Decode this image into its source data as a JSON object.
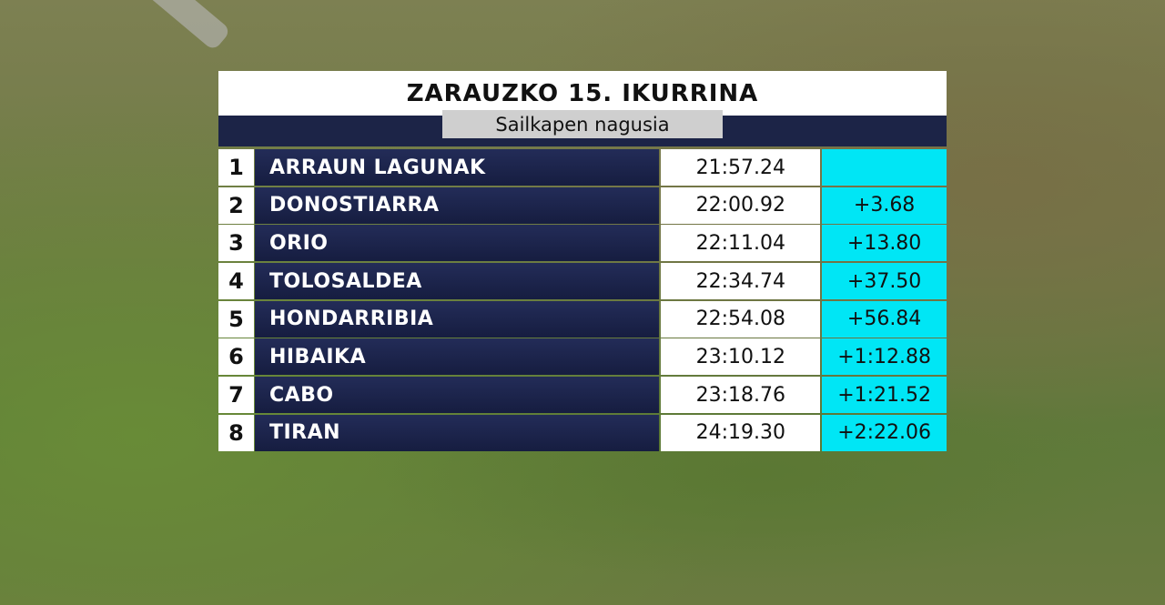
{
  "header": {
    "title": "ZARAUZKO  15.  IKURRINA",
    "subtitle": "Sailkapen nagusia"
  },
  "table": {
    "rows": [
      {
        "rank": "1",
        "team": "ARRAUN LAGUNAK",
        "time": "21:57.24"
      },
      {
        "rank": "2",
        "team": "DONOSTIARRA",
        "time": "22:00.92",
        "gap": "+3.68"
      },
      {
        "rank": "3",
        "team": "ORIO",
        "time": "22:11.04",
        "gap": "+13.80"
      },
      {
        "rank": "4",
        "team": "TOLOSALDEA",
        "time": "22:34.74",
        "gap": "+37.50"
      },
      {
        "rank": "5",
        "team": "HONDARRIBIA",
        "time": "22:54.08",
        "gap": "+56.84"
      },
      {
        "rank": "6",
        "team": "HIBAIKA",
        "time": "23:10.12",
        "gap": "+1:12.88"
      },
      {
        "rank": "7",
        "team": "CABO",
        "time": "23:18.76",
        "gap": "+1:21.52"
      },
      {
        "rank": "8",
        "team": "TIRAN",
        "time": "24:19.30",
        "gap": "+2:22.06"
      }
    ]
  }
}
